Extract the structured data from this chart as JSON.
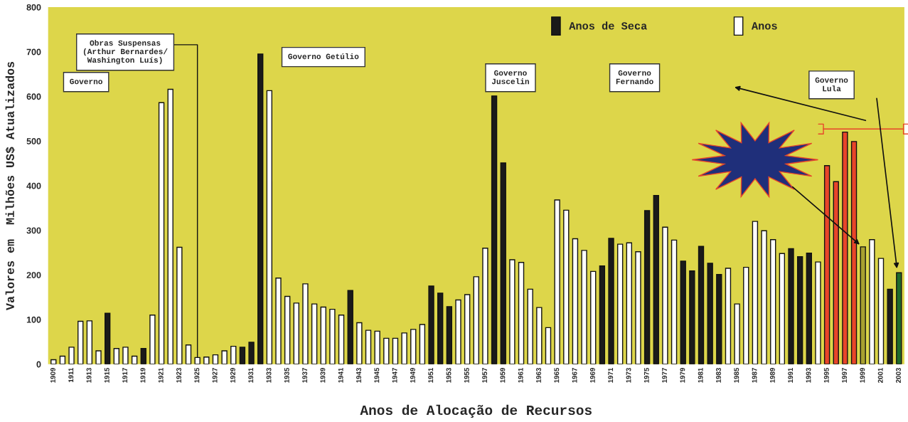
{
  "chart_data": {
    "type": "bar",
    "xlabel": "Anos de Alocação de Recursos",
    "ylabel": "Valores em  Milhões US$ Atualizados",
    "categories": [
      "1909",
      null,
      "1911",
      null,
      "1913",
      null,
      "1915",
      null,
      "1917",
      null,
      "1919",
      null,
      "1921",
      null,
      "1923",
      null,
      "1925",
      null,
      "1927",
      null,
      "1929",
      null,
      "1931",
      null,
      "1933",
      null,
      "1935",
      null,
      "1937",
      null,
      "1939",
      null,
      "1941",
      null,
      "1943",
      null,
      "1945",
      null,
      "1947",
      null,
      "1949",
      null,
      "1951",
      null,
      "1953",
      null,
      "1955",
      null,
      "1957",
      null,
      "1959",
      null,
      "1961",
      null,
      "1963",
      null,
      "1965",
      null,
      "1967",
      null,
      "1969",
      null,
      "1971",
      null,
      "1973",
      null,
      "1975",
      null,
      "1977",
      null,
      "1979",
      null,
      "1981",
      null,
      "1983",
      null,
      "1985",
      null,
      "1987",
      null,
      "1989",
      null,
      "1991",
      null,
      "1993",
      null,
      "1995",
      null,
      "1997",
      null,
      "1999",
      null,
      "2001",
      null,
      "2003"
    ],
    "series": [
      {
        "name": "Anos de Seca",
        "color": "#1a1a1a",
        "values": [
          null,
          null,
          null,
          null,
          null,
          null,
          114,
          null,
          null,
          null,
          35,
          null,
          null,
          null,
          null,
          null,
          null,
          null,
          null,
          null,
          null,
          38,
          49,
          695,
          null,
          null,
          null,
          null,
          null,
          null,
          null,
          null,
          null,
          165,
          null,
          null,
          null,
          null,
          null,
          null,
          null,
          null,
          175,
          159,
          129,
          null,
          null,
          null,
          null,
          601,
          451,
          null,
          null,
          null,
          null,
          null,
          null,
          null,
          null,
          null,
          null,
          220,
          282,
          null,
          null,
          null,
          344,
          378,
          null,
          null,
          231,
          209,
          264,
          226,
          201,
          null,
          null,
          null,
          null,
          null,
          null,
          null,
          259,
          241,
          249,
          null,
          null,
          null,
          null,
          null,
          null,
          null,
          null,
          168,
          null
        ]
      },
      {
        "name": "Anos",
        "color": "#ffffff",
        "values": [
          10,
          18,
          38,
          96,
          97,
          30,
          null,
          35,
          38,
          18,
          null,
          110,
          586,
          616,
          262,
          43,
          15,
          16,
          21,
          30,
          40,
          null,
          null,
          null,
          613,
          193,
          152,
          137,
          180,
          135,
          128,
          123,
          110,
          null,
          93,
          76,
          74,
          58,
          58,
          70,
          78,
          89,
          null,
          null,
          null,
          144,
          156,
          196,
          260,
          null,
          null,
          234,
          228,
          168,
          127,
          82,
          368,
          345,
          281,
          255,
          208,
          null,
          null,
          269,
          272,
          252,
          null,
          null,
          307,
          278,
          null,
          null,
          null,
          null,
          null,
          215,
          135,
          217,
          320,
          299,
          279,
          248,
          null,
          null,
          null,
          229,
          null,
          null,
          null,
          null,
          null,
          279,
          237,
          null,
          null
        ]
      },
      {
        "color": "#e8452a",
        "values": [
          null,
          null,
          null,
          null,
          null,
          null,
          null,
          null,
          null,
          null,
          null,
          null,
          null,
          null,
          null,
          null,
          null,
          null,
          null,
          null,
          null,
          null,
          null,
          null,
          null,
          null,
          null,
          null,
          null,
          null,
          null,
          null,
          null,
          null,
          null,
          null,
          null,
          null,
          null,
          null,
          null,
          null,
          null,
          null,
          null,
          null,
          null,
          null,
          null,
          null,
          null,
          null,
          null,
          null,
          null,
          null,
          null,
          null,
          null,
          null,
          null,
          null,
          null,
          null,
          null,
          null,
          null,
          null,
          null,
          null,
          null,
          null,
          null,
          null,
          null,
          null,
          null,
          null,
          null,
          null,
          null,
          null,
          null,
          null,
          null,
          null,
          445,
          409,
          520,
          499,
          null,
          null,
          null,
          null,
          null
        ]
      },
      {
        "color": "#a8a030",
        "values": [
          null,
          null,
          null,
          null,
          null,
          null,
          null,
          null,
          null,
          null,
          null,
          null,
          null,
          null,
          null,
          null,
          null,
          null,
          null,
          null,
          null,
          null,
          null,
          null,
          null,
          null,
          null,
          null,
          null,
          null,
          null,
          null,
          null,
          null,
          null,
          null,
          null,
          null,
          null,
          null,
          null,
          null,
          null,
          null,
          null,
          null,
          null,
          null,
          null,
          null,
          null,
          null,
          null,
          null,
          null,
          null,
          null,
          null,
          null,
          null,
          null,
          null,
          null,
          null,
          null,
          null,
          null,
          null,
          null,
          null,
          null,
          null,
          null,
          null,
          null,
          null,
          null,
          null,
          null,
          null,
          null,
          null,
          null,
          null,
          null,
          null,
          null,
          null,
          null,
          null,
          263,
          null,
          null,
          null,
          null
        ]
      },
      {
        "color": "#1f6b2a",
        "values": [
          null,
          null,
          null,
          null,
          null,
          null,
          null,
          null,
          null,
          null,
          null,
          null,
          null,
          null,
          null,
          null,
          null,
          null,
          null,
          null,
          null,
          null,
          null,
          null,
          null,
          null,
          null,
          null,
          null,
          null,
          null,
          null,
          null,
          null,
          null,
          null,
          null,
          null,
          null,
          null,
          null,
          null,
          null,
          null,
          null,
          null,
          null,
          null,
          null,
          null,
          null,
          null,
          null,
          null,
          null,
          null,
          null,
          null,
          null,
          null,
          null,
          null,
          null,
          null,
          null,
          null,
          null,
          null,
          null,
          null,
          null,
          null,
          null,
          null,
          null,
          null,
          null,
          null,
          null,
          null,
          null,
          null,
          null,
          null,
          null,
          null,
          null,
          null,
          null,
          null,
          null,
          null,
          null,
          null,
          205
        ]
      }
    ],
    "ylim": [
      0,
      800
    ],
    "yticks": [
      0,
      100,
      200,
      300,
      400,
      500,
      600,
      700,
      800
    ],
    "legend": "top",
    "annotations": [
      "Governo",
      {
        "text": "Obras Suspensas\n(Arthur Bernardes/\nWashington Luís)",
        "x": "1925",
        "y": 15
      },
      "Governo Getúlio",
      "Governo\nJuscelin",
      "Governo\nFernando",
      "Governo\nLula"
    ]
  }
}
